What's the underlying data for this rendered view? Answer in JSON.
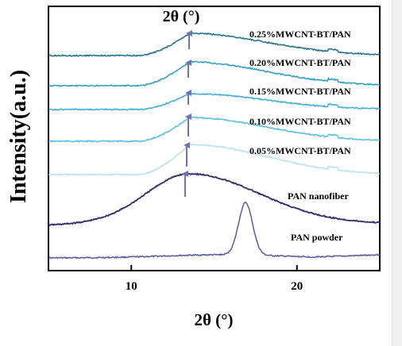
{
  "chart_data": {
    "type": "line",
    "xlabel": "2θ (°)",
    "ylabel": "Intensity(a.u.)",
    "top_annotation": "2θ (°)",
    "xlim": [
      5,
      25
    ],
    "x_ticks": [
      10,
      20
    ],
    "x_tick_labels": [
      "10",
      "20"
    ],
    "grid": false,
    "series": [
      {
        "name": "PAN powder",
        "color": "#5a5c9a",
        "peak_x": 16.9,
        "peak_shape": "sharp",
        "offset": 0
      },
      {
        "name": "PAN nanofiber",
        "color": "#2e2f6b",
        "peak_x": 13.5,
        "peak_shape": "broad",
        "offset": 1
      },
      {
        "name": "0.05%MWCNT-BT/PAN",
        "color": "#b7e0f0",
        "peak_x": 13.5,
        "peak_shape": "broad",
        "offset": 2
      },
      {
        "name": "0.10%MWCNT-BT/PAN",
        "color": "#57bfe2",
        "peak_x": 13.5,
        "peak_shape": "broad",
        "offset": 3
      },
      {
        "name": "0.15%MWCNT-BT/PAN",
        "color": "#3aaed8",
        "peak_x": 13.5,
        "peak_shape": "broad",
        "offset": 4
      },
      {
        "name": "0.20%MWCNT-BT/PAN",
        "color": "#2e9bc7",
        "peak_x": 13.5,
        "peak_shape": "broad",
        "offset": 5
      },
      {
        "name": "0.25%MWCNT-BT/PAN",
        "color": "#1f6f8a",
        "peak_x": 13.5,
        "peak_shape": "broad",
        "offset": 6
      }
    ],
    "arrow_color": "#7073b0"
  }
}
